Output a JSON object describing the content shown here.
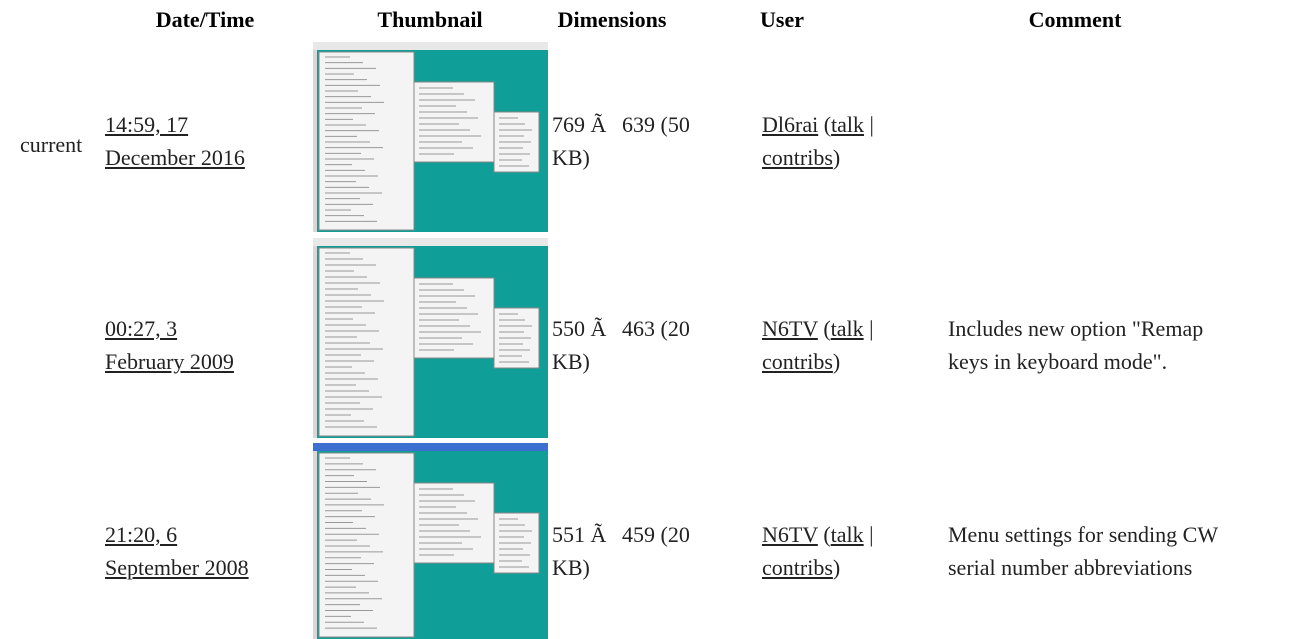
{
  "table": {
    "headers": [
      "Date/Time",
      "Thumbnail",
      "Dimensions",
      "User",
      "Comment"
    ],
    "punctuation": {
      "open": "(",
      "sep": "|",
      "close": ")"
    },
    "rows": [
      {
        "status": "current",
        "date": [
          "14:59, 17",
          "December 2016"
        ],
        "dims": [
          "769 Ã",
          "639 (50",
          "KB)"
        ],
        "user": "Dl6rai",
        "talk": "talk",
        "contribs": "contribs"
      },
      {
        "date": [
          "00:27, 3",
          "February 2009"
        ],
        "dims": [
          "550 Ã",
          "463 (20",
          "KB)"
        ],
        "user": "N6TV",
        "talk": "talk",
        "contribs": "contribs",
        "comment": [
          "Includes new option \"Remap",
          "keys in keyboard mode\"."
        ]
      },
      {
        "date": [
          "21:20, 6",
          "September 2008"
        ],
        "dims": [
          "551 Ã",
          "459 (20",
          "KB)"
        ],
        "user": "N6TV",
        "talk": "talk",
        "contribs": "contribs",
        "comment": [
          "Menu settings for sending CW",
          "serial number abbreviations"
        ]
      }
    ]
  }
}
